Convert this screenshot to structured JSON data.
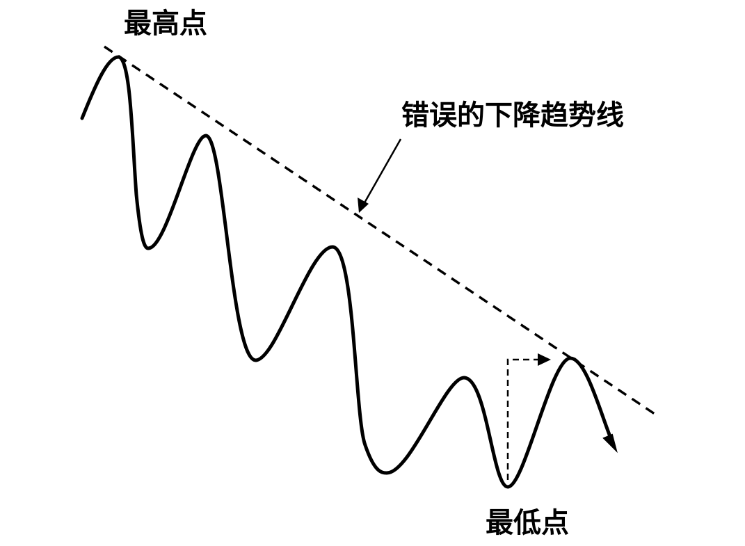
{
  "labels": {
    "highest_point": "最高点",
    "wrong_trendline": "错误的下降趋势线",
    "lowest_point": "最低点"
  },
  "colors": {
    "ink": "#000000",
    "background": "#ffffff"
  }
}
